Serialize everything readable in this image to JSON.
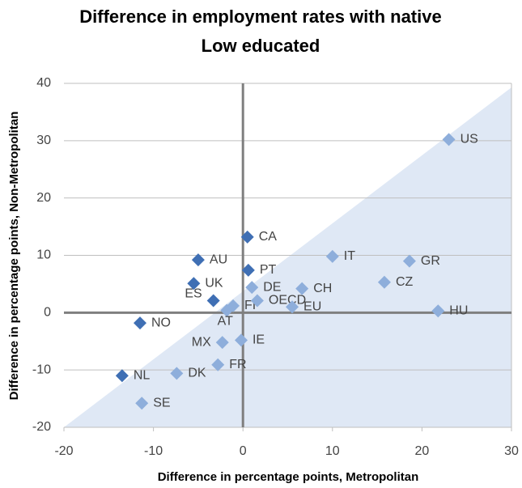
{
  "chart_data": {
    "type": "scatter",
    "title": "Difference in employment rates with native",
    "subtitle": "Low educated",
    "x_label": "Difference in percentage points, Metropolitan",
    "y_label": "Difference in percentage points, Non-Metropolitan",
    "point_labels": [
      "US",
      "IT",
      "GR",
      "CZ",
      "HU",
      "CA",
      "AU",
      "PT",
      "UK",
      "ES",
      "NO",
      "NL",
      "DE",
      "CH",
      "FI",
      "AT",
      "OECD",
      "EU",
      "MX",
      "IE",
      "FR",
      "DK",
      "SE"
    ],
    "x": [
      23,
      10,
      18.6,
      15.8,
      21.8,
      0.5,
      -5,
      0.6,
      -5.5,
      -3.3,
      -11.5,
      -13.5,
      1,
      6.6,
      -1.1,
      -1.8,
      1.6,
      5.5,
      -2.3,
      -0.2,
      -2.8,
      -7.4,
      -11.3
    ],
    "values": [
      30.2,
      9.8,
      9,
      5.3,
      0.3,
      13.2,
      9.2,
      7.4,
      5.1,
      2.1,
      -1.8,
      -11,
      4.4,
      4.2,
      1.2,
      0.4,
      2.1,
      1,
      -5.2,
      -4.8,
      -9.1,
      -10.6,
      -15.8
    ],
    "colors": [
      "#8eaedb",
      "#8eaedb",
      "#8eaedb",
      "#8eaedb",
      "#8eaedb",
      "#3f6fb4",
      "#3f6fb4",
      "#3f6fb4",
      "#3f6fb4",
      "#3f6fb4",
      "#3f6fb4",
      "#3f6fb4",
      "#8eaedb",
      "#8eaedb",
      "#8eaedb",
      "#8eaedb",
      "#8eaedb",
      "#8eaedb",
      "#8eaedb",
      "#8eaedb",
      "#8eaedb",
      "#8eaedb",
      "#8eaedb"
    ],
    "xlim": [
      -20,
      30
    ],
    "xticks": [
      -20,
      -10,
      0,
      10,
      20,
      30
    ],
    "ylim": [
      -20,
      40
    ],
    "yticks": [
      -20,
      -10,
      0,
      10,
      20,
      30,
      40
    ],
    "grid": true
  }
}
